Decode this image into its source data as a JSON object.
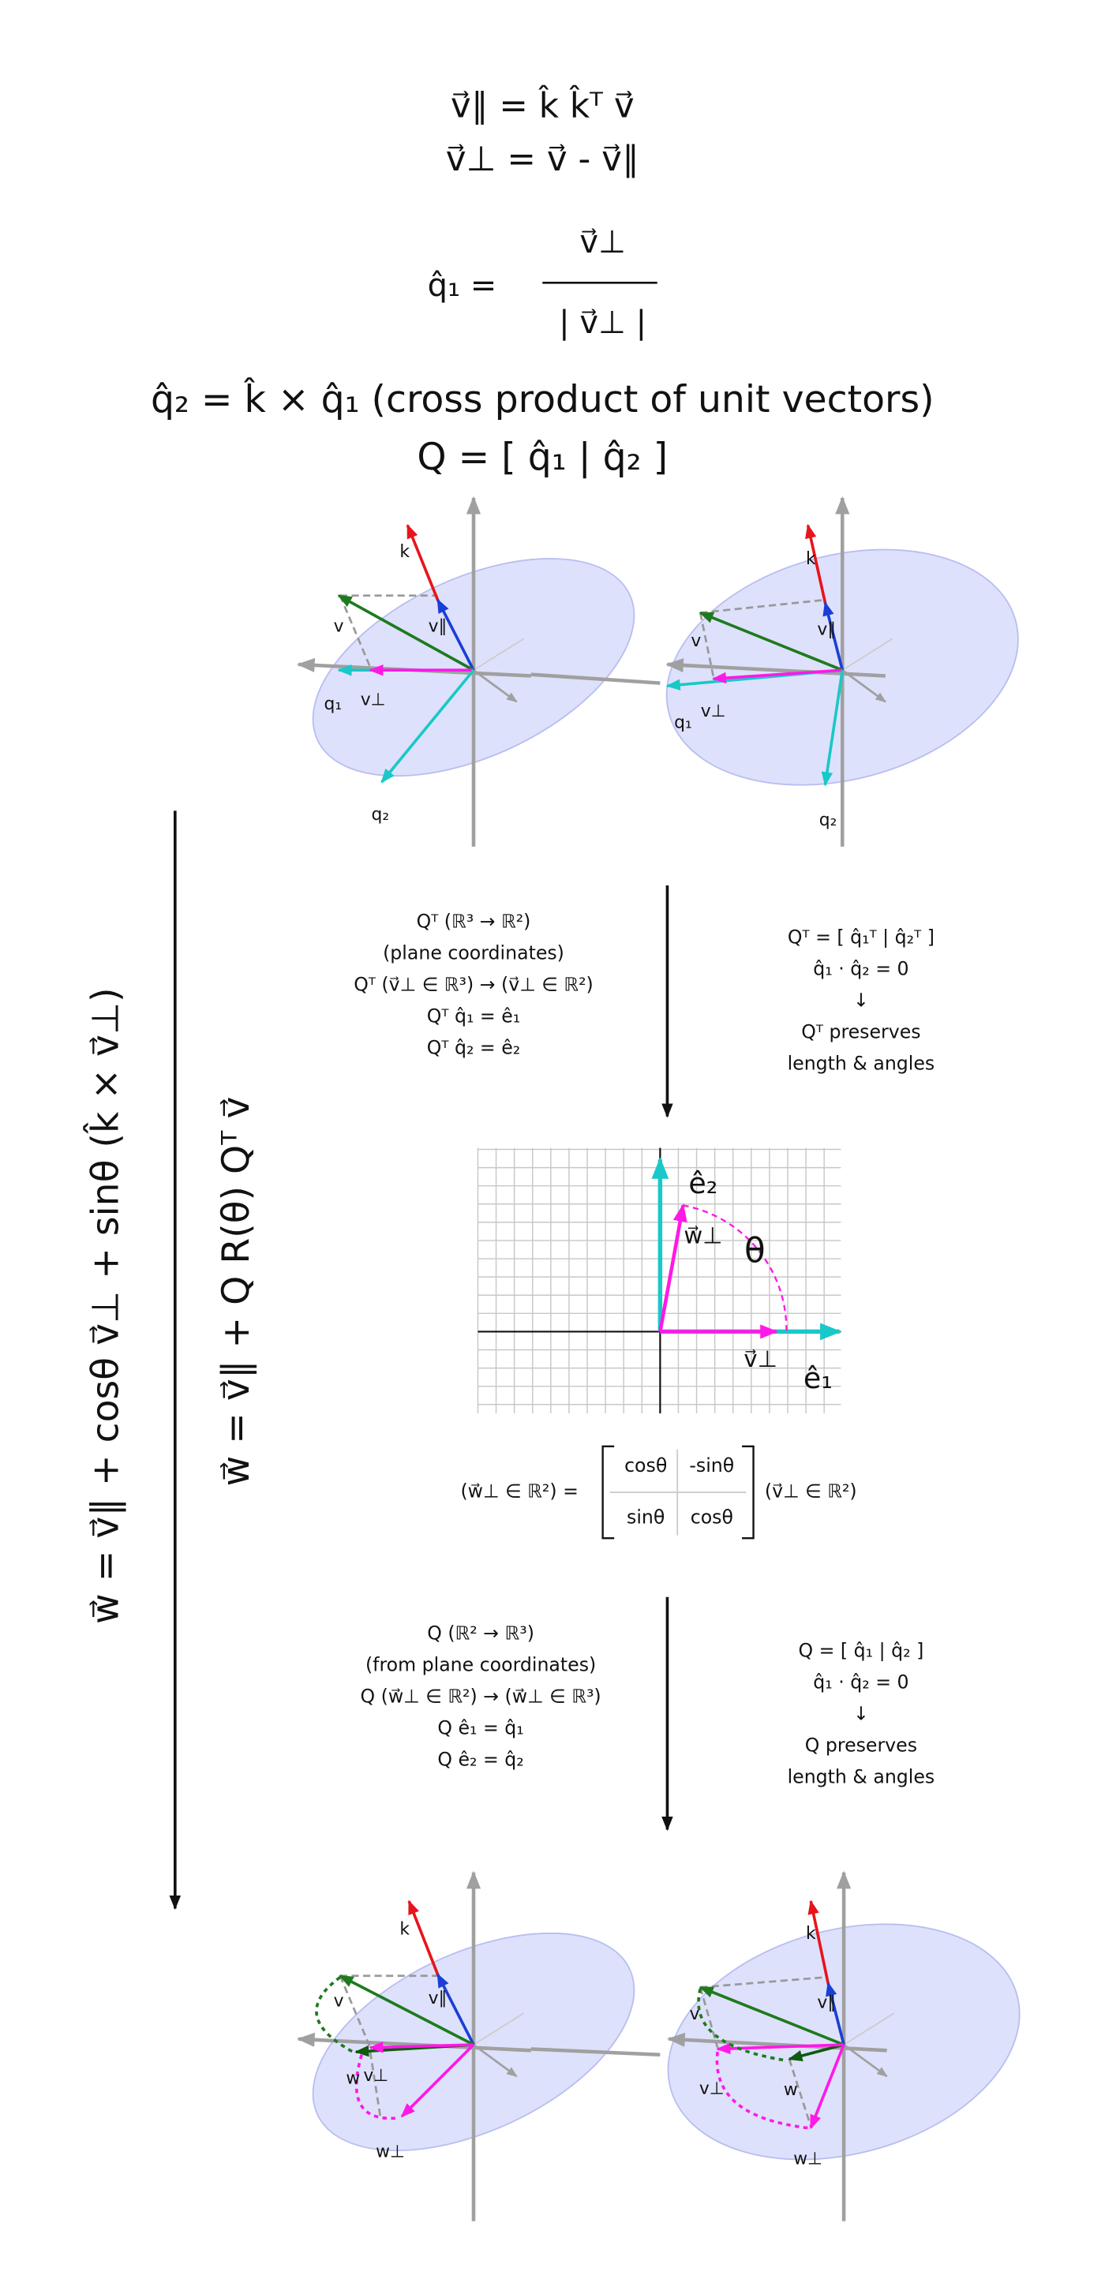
{
  "equations": {
    "v_parallel": "v⃗∥ = k̂ k̂ᵀ v⃗",
    "v_perp": "v⃗⊥ = v⃗ - v⃗∥",
    "q1_lhs": "q̂₁ =",
    "q1_numerator": "v⃗⊥",
    "q1_denominator": "| v⃗⊥ |",
    "q2": "q̂₂ = k̂ × q̂₁ (cross product of unit vectors)",
    "Q": "Q = [ q̂₁ | q̂₂ ]"
  },
  "top_left": {
    "k": "k",
    "v_parallel": "v∥",
    "v": "v",
    "q1": "q₁",
    "v_perp": "v⊥",
    "q2": "q₂"
  },
  "top_right": {
    "k": "k",
    "v_parallel": "v∥",
    "v": "v",
    "q1": "q₁",
    "v_perp": "v⊥",
    "q2": "q₂"
  },
  "step1": {
    "left": [
      "Qᵀ (ℝ³ → ℝ²)",
      "(plane coordinates)",
      "Qᵀ (v⃗⊥ ∈ ℝ³) → (v⃗⊥ ∈ ℝ²)",
      "Qᵀ q̂₁ = ê₁",
      "Qᵀ q̂₂ = ê₂"
    ],
    "right": [
      "Qᵀ = [ q̂₁ᵀ | q̂₂ᵀ ]",
      "q̂₁ · q̂₂ = 0",
      "↓",
      "Qᵀ preserves",
      "length & angles"
    ]
  },
  "plane": {
    "e2": "ê₂",
    "w_perp": "w⃗⊥",
    "theta": "θ",
    "v_perp": "v⃗⊥",
    "e1": "ê₁"
  },
  "rotation": {
    "lhs": "(w⃗⊥ ∈ ℝ²) =",
    "matrix": [
      [
        "cosθ",
        "-sinθ"
      ],
      [
        "sinθ",
        "cosθ"
      ]
    ],
    "rhs": "(v⃗⊥ ∈ ℝ²)"
  },
  "step2": {
    "left": [
      "Q (ℝ² → ℝ³)",
      "(from plane coordinates)",
      "Q (w⃗⊥ ∈ ℝ²) → (w⃗⊥ ∈ ℝ³)",
      "Q ê₁ = q̂₁",
      "Q ê₂ = q̂₂"
    ],
    "right": [
      "Q = [ q̂₁ | q̂₂ ]",
      "q̂₁ · q̂₂ = 0",
      "↓",
      "Q preserves",
      "length & angles"
    ]
  },
  "formulas": {
    "full": "w⃗ = v⃗∥ + cosθ v⃗⊥ + sinθ (k̂ × v⃗⊥)",
    "composite": "w⃗ = v⃗∥ + Q R(θ) Qᵀ v⃗"
  },
  "bottom_left": {
    "k": "k",
    "v_parallel": "v∥",
    "v": "v",
    "w": "w",
    "v_perp": "v⊥",
    "w_perp": "w⊥"
  },
  "bottom_right": {
    "k": "k",
    "v_parallel": "v∥",
    "v": "v",
    "v_perp": "v⊥",
    "w": "w",
    "w_perp": "w⊥"
  }
}
